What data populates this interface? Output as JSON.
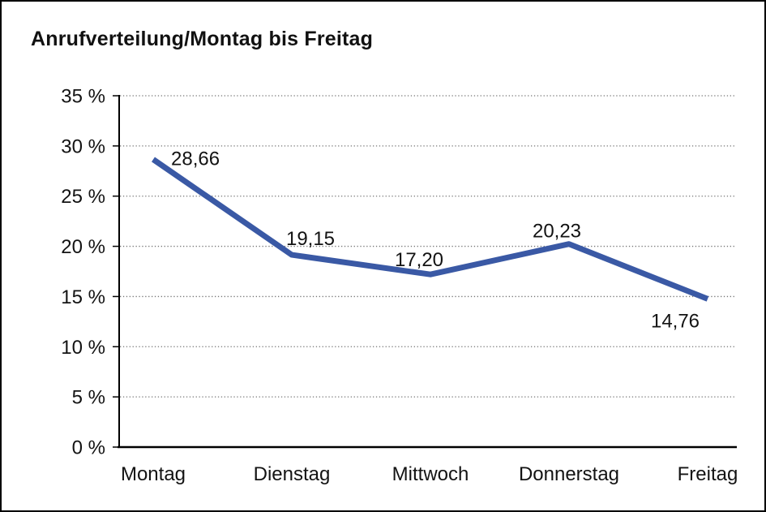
{
  "page": {
    "title": "Anrufverteilung/Montag bis Freitag"
  },
  "chart_data": {
    "type": "line",
    "title": "Anrufverteilung/Montag bis Freitag",
    "categories": [
      "Montag",
      "Dienstag",
      "Mittwoch",
      "Donnerstag",
      "Freitag"
    ],
    "series": [
      {
        "name": "Anrufverteilung",
        "values": [
          28.66,
          19.15,
          17.2,
          20.23,
          14.76
        ]
      }
    ],
    "data_labels": [
      "28,66",
      "19,15",
      "17,20",
      "20,23",
      "14,76"
    ],
    "y_tick_labels": [
      "0 %",
      "5 %",
      "10 %",
      "15 %",
      "20 %",
      "25 %",
      "30 %",
      "35 %"
    ],
    "ylim": [
      0,
      35
    ],
    "y_step": 5,
    "xlabel": "",
    "ylabel": "",
    "legend": "none",
    "grid": "horizontal-dotted",
    "line_color": "#3A59A5",
    "axis_color": "#000000",
    "grid_color": "#767676",
    "text_color": "#131313"
  }
}
